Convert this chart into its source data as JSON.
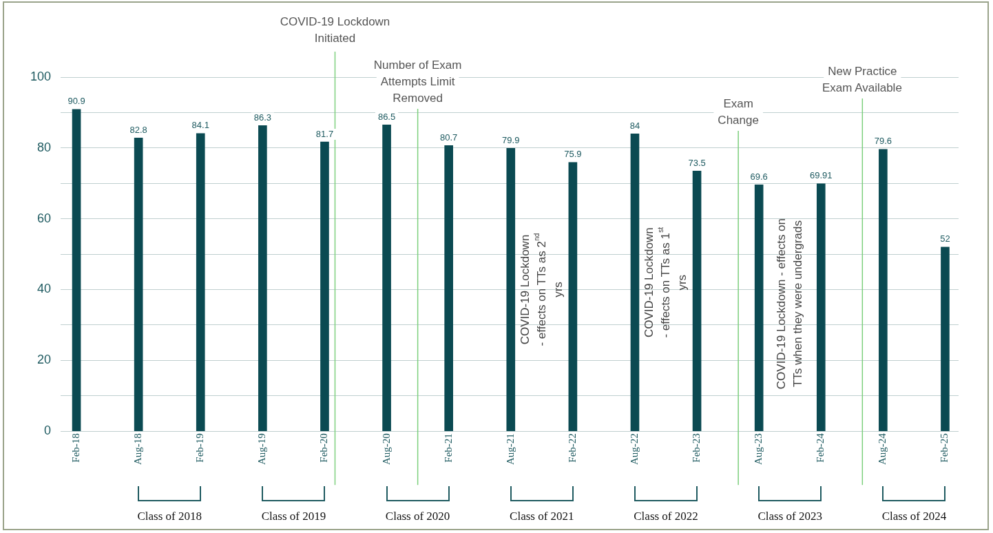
{
  "chart_data": {
    "type": "bar",
    "x": [
      "2018-02",
      "2018-08",
      "2019-02",
      "2019-08",
      "2020-02",
      "2020-08",
      "2021-02",
      "2021-08",
      "2022-02",
      "2022-08",
      "2023-02",
      "2023-08",
      "2024-02",
      "2024-08",
      "2025-02"
    ],
    "values": [
      90.9,
      82.8,
      84.1,
      86.3,
      81.7,
      86.5,
      80.7,
      79.9,
      75.9,
      84,
      73.5,
      69.6,
      69.91,
      79.6,
      52
    ],
    "color": "#0b4a52",
    "data_labels": true,
    "xlim": [
      "2017-12-15",
      "2025-03-10"
    ],
    "xticks": [
      {
        "value": "2018-02",
        "label": "Feb-18"
      },
      {
        "value": "2018-08",
        "label": "Aug-18"
      },
      {
        "value": "2019-02",
        "label": "Feb-19"
      },
      {
        "value": "2019-08",
        "label": "Aug-19"
      },
      {
        "value": "2020-02",
        "label": "Feb-20"
      },
      {
        "value": "2020-08",
        "label": "Aug-20"
      },
      {
        "value": "2021-02",
        "label": "Feb-21"
      },
      {
        "value": "2021-08",
        "label": "Aug-21"
      },
      {
        "value": "2022-02",
        "label": "Feb-22"
      },
      {
        "value": "2022-08",
        "label": "Aug-22"
      },
      {
        "value": "2023-02",
        "label": "Feb-23"
      },
      {
        "value": "2023-08",
        "label": "Aug-23"
      },
      {
        "value": "2024-02",
        "label": "Feb-24"
      },
      {
        "value": "2024-08",
        "label": "Aug-24"
      },
      {
        "value": "2025-02",
        "label": "Feb-25"
      }
    ],
    "ylim": [
      0,
      100
    ],
    "yticks": [
      0,
      {
        "value": 10,
        "label": null
      },
      20,
      {
        "value": 30,
        "label": null
      },
      40,
      {
        "value": 50,
        "label": null
      },
      60,
      {
        "value": 70,
        "label": null
      },
      80,
      {
        "value": 90,
        "label": null
      },
      100
    ],
    "grid": "y",
    "legend": false,
    "ref_lines": [
      {
        "axis": "x",
        "value": "2020-03",
        "label": "COVID-19 Lockdown Initiated",
        "color": "#7ccf7c"
      },
      {
        "axis": "x",
        "value": "2020-11",
        "label": "Number of Exam Attempts Limit Removed",
        "color": "#7ccf7c"
      },
      {
        "axis": "x",
        "value": "2023-06",
        "label": "Exam Change",
        "color": "#7ccf7c"
      },
      {
        "axis": "x",
        "value": "2024-06",
        "label": "New Practice Exam Available",
        "color": "#7ccf7c"
      }
    ],
    "annotations": [
      "COVID-19 Lockdown - effects on TTs as 2$^{nd}$ yrs",
      "COVID-19 Lockdown - effects on TTs as 1$^{st}$ yrs",
      "COVID-19 Lockdown - effects on TTs when they were undergrads",
      "Class of 2018",
      "Class of 2019",
      "Class of 2020",
      "Class of 2021",
      "Class of 2022",
      "Class of 2023",
      "Class of 2024"
    ]
  }
}
